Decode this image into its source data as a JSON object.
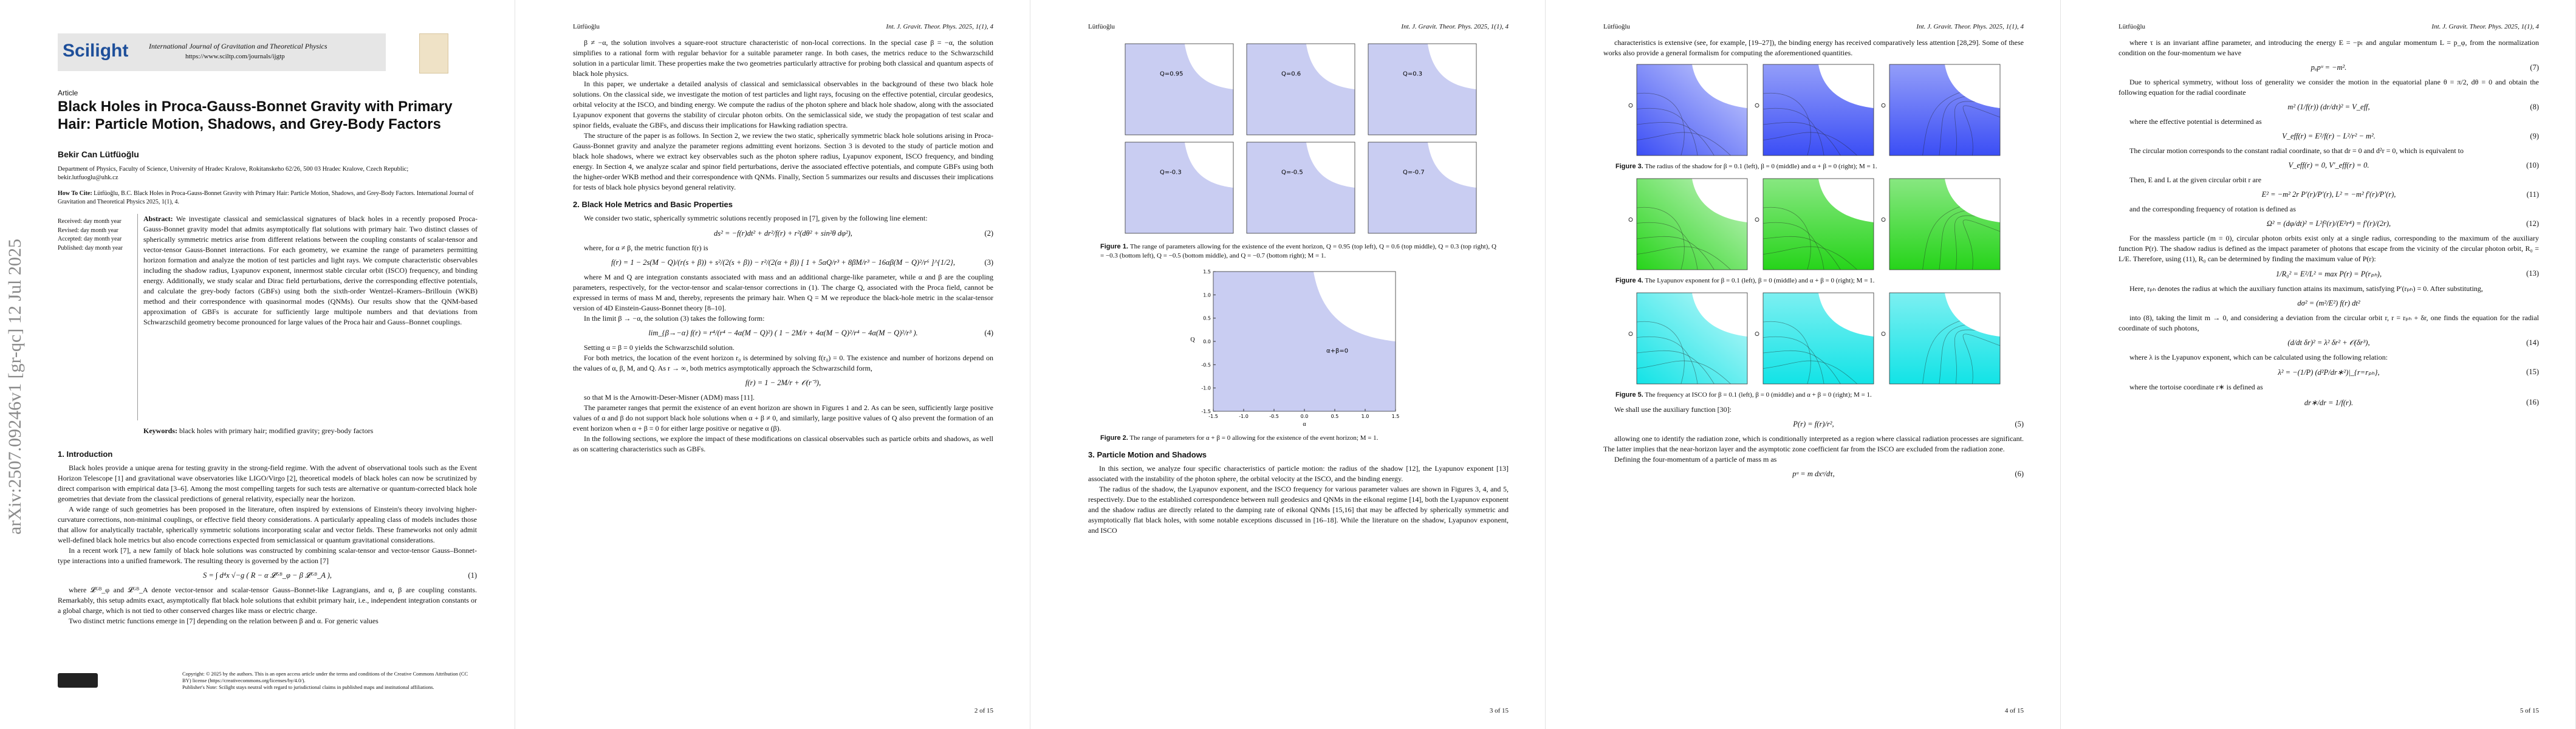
{
  "arxiv_stamp": "arXiv:2507.09246v1  [gr-qc]  12 Jul 2025",
  "page1": {
    "logo": "Scilight",
    "journal": "International Journal of Gravitation and Theoretical Physics",
    "url": "https://www.sciltp.com/journals/ijgtp",
    "article_type": "Article",
    "title": "Black Holes in Proca-Gauss-Bonnet Gravity with Primary Hair: Particle Motion, Shadows, and Grey-Body Factors",
    "author": "Bekir Can Lütfüoğlu",
    "affiliation": "Department of Physics, Faculty of Science, University of Hradec Kralove, Rokitanskeho 62/26, 500 03 Hradec Kralove, Czech Republic; bekir.lutfuoglu@uhk.cz",
    "how_to_cite_label": "How To Cite:",
    "how_to_cite": "Lütfüoğlu, B.C. Black Holes in Proca-Gauss-Bonnet Gravity with Primary Hair: Particle Motion, Shadows, and Grey-Body Factors. International Journal of Gravitation and Theoretical Physics 2025, 1(1), 4.",
    "dates": [
      "Received: day month year",
      "Revised: day month year",
      "Accepted: day month year",
      "Published: day month year"
    ],
    "abstract_label": "Abstract:",
    "abstract": "We investigate classical and semiclassical signatures of black holes in a recently proposed Proca-Gauss-Bonnet gravity model that admits asymptotically flat solutions with primary hair. Two distinct classes of spherically symmetric metrics arise from different relations between the coupling constants of scalar-tensor and vector-tensor Gauss-Bonnet interactions. For each geometry, we examine the range of parameters permitting horizon formation and analyze the motion of test particles and light rays. We compute characteristic observables including the shadow radius, Lyapunov exponent, innermost stable circular orbit (ISCO) frequency, and binding energy. Additionally, we study scalar and Dirac field perturbations, derive the corresponding effective potentials, and calculate the grey-body factors (GBFs) using both the sixth-order Wentzel–Kramers–Brillouin (WKB) method and their correspondence with quasinormal modes (QNMs). Our results show that the QNM-based approximation of GBFs is accurate for sufficiently large multipole numbers and that deviations from Schwarzschild geometry become pronounced for large values of the Proca hair and Gauss–Bonnet couplings.",
    "keywords_label": "Keywords:",
    "keywords": "black holes with primary hair; modified gravity; grey-body factors",
    "blocks": [
      {
        "heading": "1.  Introduction"
      },
      {
        "text": "Black holes provide a unique arena for testing gravity in the strong-field regime. With the advent of observational tools such as the Event Horizon Telescope [1] and gravitational wave observatories like LIGO/Virgo [2], theoretical models of black holes can now be scrutinized by direct comparison with empirical data [3–6]. Among the most compelling targets for such tests are alternative or quantum-corrected black hole geometries that deviate from the classical predictions of general relativity, especially near the horizon."
      },
      {
        "text": "A wide range of such geometries has been proposed in the literature, often inspired by extensions of Einstein's theory involving higher-curvature corrections, non-minimal couplings, or effective field theory considerations. A particularly appealing class of models includes those that allow for analytically tractable, spherically symmetric solutions incorporating scalar and vector fields. These frameworks not only admit well-defined black hole metrics but also encode corrections expected from semiclassical or quantum gravitational considerations."
      },
      {
        "text": "In a recent work [7], a new family of black hole solutions was constructed by combining scalar-tensor and vector-tensor Gauss–Bonnet-type interactions into a unified framework. The resulting theory is governed by the action [7]"
      },
      {
        "equation": "S = ∫ d⁴x √−g ( R − α 𝓛ᴳᴮ_φ − β 𝓛ᴳᴮ_A ),",
        "number": "(1)"
      },
      {
        "text": "where 𝓛ᴳᴮ_φ and 𝓛ᴳᴮ_A denote vector-tensor and scalar-tensor Gauss–Bonnet-like Lagrangians, and α, β are coupling constants. Remarkably, this setup admits exact, asymptotically flat black hole solutions that exhibit primary hair, i.e., independent integration constants or a global charge, which is not tied to other conserved charges like mass or electric charge."
      },
      {
        "text": "Two distinct metric functions emerge in [7] depending on the relation between β and α. For generic values"
      }
    ],
    "copyright": "Copyright: © 2025 by the authors. This is an open access article under the terms and conditions of the Creative Commons Attribution (CC BY) license (https://creativecommons.org/licenses/by/4.0/).",
    "publisher_note": "Publisher's Note: Scilight stays neutral with regard to jurisdictional claims in published maps and institutional affiliations."
  },
  "pages": [
    {
      "running_author": "Lütfüoğlu",
      "journal_ref": "Int. J. Gravit. Theor. Phys. 2025, 1(1), 4",
      "page_number": "2 of 15",
      "blocks": [
        {
          "text": "β ≠ −α, the solution involves a square-root structure characteristic of non-local corrections. In the special case β = −α, the solution simplifies to a rational form with regular behavior for a suitable parameter range. In both cases, the metrics reduce to the Schwarzschild solution in a particular limit. These properties make the two geometries particularly attractive for probing both classical and quantum aspects of black hole physics."
        },
        {
          "text": "In this paper, we undertake a detailed analysis of classical and semiclassical observables in the background of these two black hole solutions. On the classical side, we investigate the motion of test particles and light rays, focusing on the effective potential, circular geodesics, orbital velocity at the ISCO, and binding energy. We compute the radius of the photon sphere and black hole shadow, along with the associated Lyapunov exponent that governs the stability of circular photon orbits. On the semiclassical side, we study the propagation of test scalar and spinor fields, evaluate the GBFs, and discuss their implications for Hawking radiation spectra."
        },
        {
          "text": "The structure of the paper is as follows. In Section 2, we review the two static, spherically symmetric black hole solutions arising in Proca-Gauss-Bonnet gravity and analyze the parameter regions admitting event horizons. Section 3 is devoted to the study of particle motion and black hole shadows, where we extract key observables such as the photon sphere radius, Lyapunov exponent, ISCO frequency, and binding energy. In Section 4, we analyze scalar and spinor field perturbations, derive the associated effective potentials, and compute GBFs using both the higher-order WKB method and their correspondence with QNMs. Finally, Section 5 summarizes our results and discusses their implications for tests of black hole physics beyond general relativity."
        },
        {
          "heading": "2.  Black Hole Metrics and Basic Properties"
        },
        {
          "text": "We consider two static, spherically symmetric solutions recently proposed in [7], given by the following line element:"
        },
        {
          "equation": "ds² = −f(r)dt² + dr²/f(r) + r²(dθ² + sin²θ dφ²),",
          "number": "(2)"
        },
        {
          "text": "where, for α ≠ β, the metric function f(r) is"
        },
        {
          "equation": "f(r) = 1 − 2s(M − Q)/(r(s + β)) + s²/(2(s + β)) − r²/(2(α + β)) [ 1 + 5αQ/r³ + 8βM/r³ − 16αβ(M − Q)²/r⁶ ]^{1/2},",
          "number": "(3)"
        },
        {
          "text": "where M and Q are integration constants associated with mass and an additional charge-like parameter, while α and β are the coupling parameters, respectively, for the vector-tensor and scalar-tensor corrections in (1). The charge Q, associated with the Proca field, cannot be expressed in terms of mass M and, thereby, represents the primary hair. When Q = M we reproduce the black-hole metric in the scalar-tensor version of 4D Einstein-Gauss-Bonnet theory [8–10]."
        },
        {
          "text": "In the limit β → −α, the solution (3) takes the following form:"
        },
        {
          "equation": "lim_{β→−α} f(r) = r⁴/(r⁴ − 4α(M − Q)²) ( 1 − 2M/r + 4α(M − Q)²/r⁴ − 4α(M − Q)²/r³ ).",
          "number": "(4)"
        },
        {
          "text": "Setting α = β = 0 yields the Schwarzschild solution."
        },
        {
          "text": "For both metrics, the location of the event horizon r₀ is determined by solving f(r₀) = 0. The existence and number of horizons depend on the values of α, β, M, and Q. As r → ∞, both metrics asymptotically approach the Schwarzschild form,"
        },
        {
          "equation": "f(r) = 1 − 2M/r + 𝒪(r⁻³),",
          "number": ""
        },
        {
          "text": "so that M is the Arnowitt-Deser-Misner (ADM) mass [11]."
        },
        {
          "text": "The parameter ranges that permit the existence of an event horizon are shown in Figures 1 and 2. As can be seen, sufficiently large positive values of α and β do not support black hole solutions when α + β ≠ 0, and similarly, large positive values of Q also prevent the formation of an event horizon when α + β = 0 for either large positive or negative α (β)."
        },
        {
          "text": "In the following sections, we explore the impact of these modifications on classical observables such as particle orbits and shadows, as well as on scattering characteristics such as GBFs."
        }
      ]
    },
    {
      "running_author": "Lütfüoğlu",
      "journal_ref": "Int. J. Gravit. Theor. Phys. 2025, 1(1), 4",
      "page_number": "3 of 15",
      "blocks": [
        {
          "figure": {
            "panels": [
              "Q=0.95",
              "Q=0.6",
              "Q=0.3",
              "Q=-0.3",
              "Q=-0.5",
              "Q=-0.7"
            ],
            "color": "#c9cdf2",
            "caption_label": "Figure 1.",
            "caption": "The range of parameters allowing for the existence of the event horizon, Q = 0.95 (top left), Q = 0.6 (top middle), Q = 0.3 (top right), Q = −0.3 (bottom left), Q = −0.5 (bottom middle), and Q = −0.7 (bottom right); M = 1."
          }
        },
        {
          "plot": {
            "label": "α+β=0",
            "xlabel": "α",
            "ylabel": "Q",
            "color": "#c9cdf2",
            "xticks": [
              "-1.5",
              "-1.0",
              "-0.5",
              "0.0",
              "0.5",
              "1.0",
              "1.5"
            ],
            "yticks": [
              "1.5",
              "1.0",
              "0.5",
              "0.0",
              "-0.5",
              "-1.0",
              "-1.5"
            ],
            "caption_label": "Figure 2.",
            "caption": "The range of parameters for α + β = 0 allowing for the existence of the event horizon; M = 1."
          }
        },
        {
          "heading": "3.  Particle Motion and Shadows"
        },
        {
          "text": "In this section, we analyze four specific characteristics of particle motion: the radius of the shadow [12], the Lyapunov exponent [13] associated with the instability of the photon sphere, the orbital velocity at the ISCO, and the binding energy."
        },
        {
          "text": "The radius of the shadow, the Lyapunov exponent, and the ISCO frequency for various parameter values are shown in Figures 3, 4, and 5, respectively. Due to the established correspondence between null geodesics and QNMs in the eikonal regime [14], both the Lyapunov exponent and the shadow radius are directly related to the damping rate of eikonal QNMs [15,16] that may be affected by spherically symmetric and asymptotically flat black holes, with some notable exceptions discussed in [16–18]. While the literature on the shadow, Lyapunov exponent, and ISCO"
        }
      ]
    },
    {
      "running_author": "Lütfüoğlu",
      "journal_ref": "Int. J. Gravit. Theor. Phys. 2025, 1(1), 4",
      "page_number": "4 of 15",
      "blocks": [
        {
          "text": "characteristics is extensive (see, for example, [19–27]), the binding energy has received comparatively less attention [28,29]. Some of these works also provide a general formalism for computing the aforementioned quantities."
        },
        {
          "figure": {
            "color": "#3b4ef5",
            "caption_label": "Figure 3.",
            "caption": "The radius of the shadow for β = 0.1 (left), β = 0 (middle) and α + β = 0 (right); M = 1."
          }
        },
        {
          "figure": {
            "color": "#26d41a",
            "caption_label": "Figure 4.",
            "caption": "The Lyapunov exponent for β = 0.1 (left), β = 0 (middle) and α + β = 0 (right); M = 1."
          }
        },
        {
          "figure": {
            "color": "#12e3e6",
            "caption_label": "Figure 5.",
            "caption": "The frequency at ISCO for β = 0.1 (left), β = 0 (middle) and α + β = 0 (right); M = 1."
          }
        },
        {
          "text": "We shall use the auxiliary function [30]:"
        },
        {
          "equation": "P(r) = f(r)/r²,",
          "number": "(5)"
        },
        {
          "text": "allowing one to identify the radiation zone, which is conditionally interpreted as a region where classical radiation processes are significant. The latter implies that the near-horizon layer and the asymptotic zone coefficient far from the ISCO are excluded from the radiation zone."
        },
        {
          "text": "Defining the four-momentum of a particle of mass m as"
        },
        {
          "equation": "pᵘ = m dxᵘ/dτ,",
          "number": "(6)"
        }
      ]
    },
    {
      "running_author": "Lütfüoğlu",
      "journal_ref": "Int. J. Gravit. Theor. Phys. 2025, 1(1), 4",
      "page_number": "5 of 15",
      "blocks": [
        {
          "text": "where τ is an invariant affine parameter, and introducing the energy E = −pₜ and angular momentum L = p_φ, from the normalization condition on the four-momentum we have"
        },
        {
          "equation": "pᵤpᵘ = −m².",
          "number": "(7)"
        },
        {
          "text": "Due to spherical symmetry, without loss of generality we consider the motion in the equatorial plane θ = π/2, dθ = 0 and obtain the following equation for the radial coordinate"
        },
        {
          "equation": "m² (1/f(r)) (dr/dτ)² = V_eff,",
          "number": "(8)"
        },
        {
          "text": "where the effective potential is determined as"
        },
        {
          "equation": "V_eff(r) = E²/f(r) − L²/r² − m².",
          "number": "(9)"
        },
        {
          "text": "The circular motion corresponds to the constant radial coordinate, so that dr = 0 and d²r = 0, which is equivalent to"
        },
        {
          "equation": "V_eff(r) = 0,    V′_eff(r) = 0.",
          "number": "(10)"
        },
        {
          "text": "Then, E and L at the given circular orbit r are"
        },
        {
          "equation": "E² = −m² 2r P′(r)/P′(r),    L² = −m² f′(r)/P′(r),",
          "number": "(11)"
        },
        {
          "text": "and the corresponding frequency of rotation is defined as"
        },
        {
          "equation": "Ω² = (dφ/dt)² = L²f²(r)/(E²r⁴) = f′(r)/(2r),",
          "number": "(12)"
        },
        {
          "text": "For the massless particle (m = 0), circular photon orbits exist only at a single radius, corresponding to the maximum of the auxiliary function P(r). The shadow radius is defined as the impact parameter of photons that escape from the vicinity of the circular photon orbit, R₀ = L/E. Therefore, using (11), R₀ can be determined by finding the maximum value of P(r):"
        },
        {
          "equation": "1/R₀² = E²/L² = max P(r) = P(rₚₕ),",
          "number": "(13)"
        },
        {
          "text": "Here, rₚₕ denotes the radius at which the auxiliary function attains its maximum, satisfying P′(rₚₕ) = 0. After substituting,"
        },
        {
          "equation": "dσ² = (m²/E²) f(r) dt²",
          "number": ""
        },
        {
          "text": "into (8), taking the limit m → 0, and considering a deviation from the circular orbit r, r = rₚₕ + δr, one finds the equation for the radial coordinate of such photons,"
        },
        {
          "equation": "(d/dt δr)² = λ² δr² + 𝒪(δr³),",
          "number": "(14)"
        },
        {
          "text": "where λ is the Lyapunov exponent, which can be calculated using the following relation:"
        },
        {
          "equation": "λ² = −(1/P) (d²P/dr∗²)|_{r=rₚₕ},",
          "number": "(15)"
        },
        {
          "text": "where the tortoise coordinate r∗ is defined as"
        },
        {
          "equation": "dr∗/dr = 1/f(r).",
          "number": "(16)"
        }
      ]
    }
  ]
}
